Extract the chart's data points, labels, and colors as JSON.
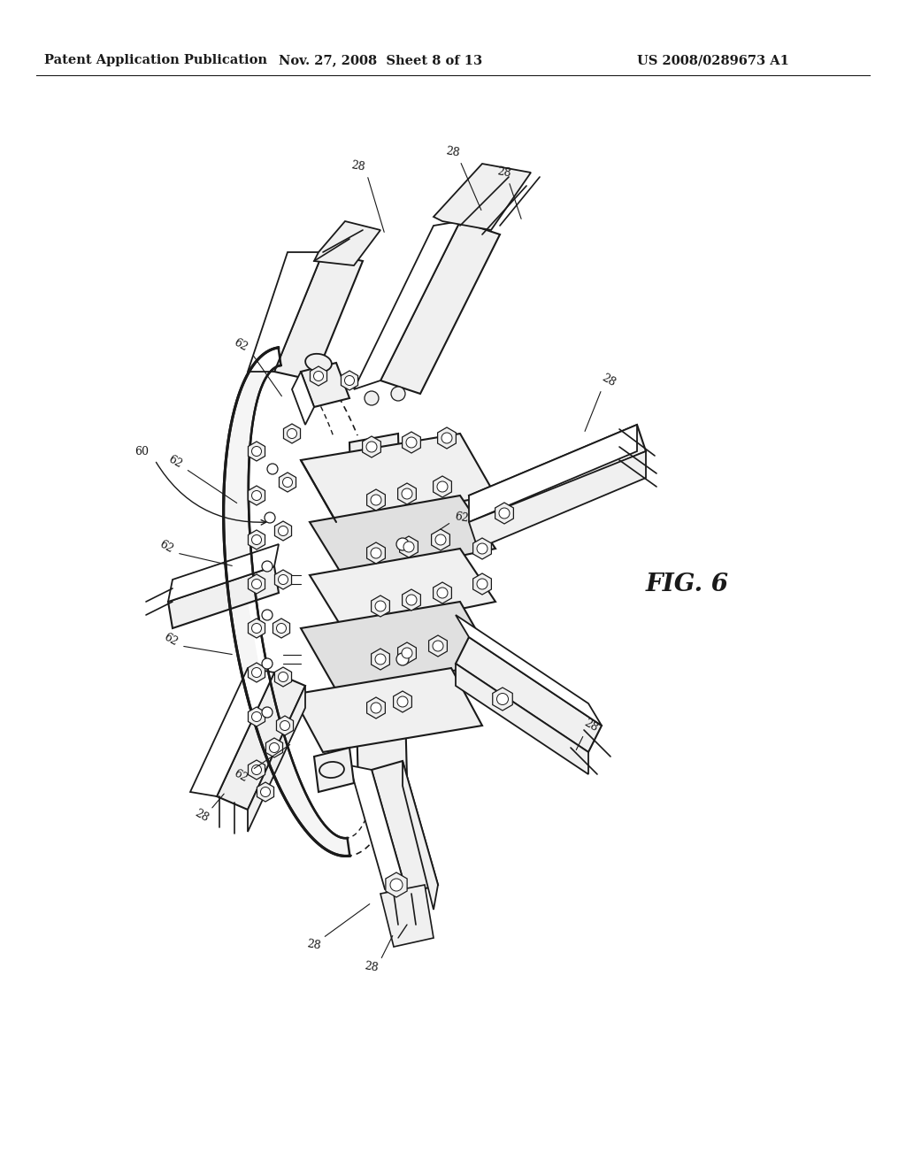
{
  "background_color": "#ffffff",
  "header_left": "Patent Application Publication",
  "header_center": "Nov. 27, 2008  Sheet 8 of 13",
  "header_right": "US 2008/0289673 A1",
  "figure_label": "FIG. 6",
  "header_fontsize": 10.5,
  "label_fontsize": 9,
  "fig_label_fontsize": 20,
  "line_color": "#1a1a1a",
  "fill_white": "#ffffff",
  "fill_light": "#f0f0f0",
  "fill_medium": "#e0e0e0"
}
